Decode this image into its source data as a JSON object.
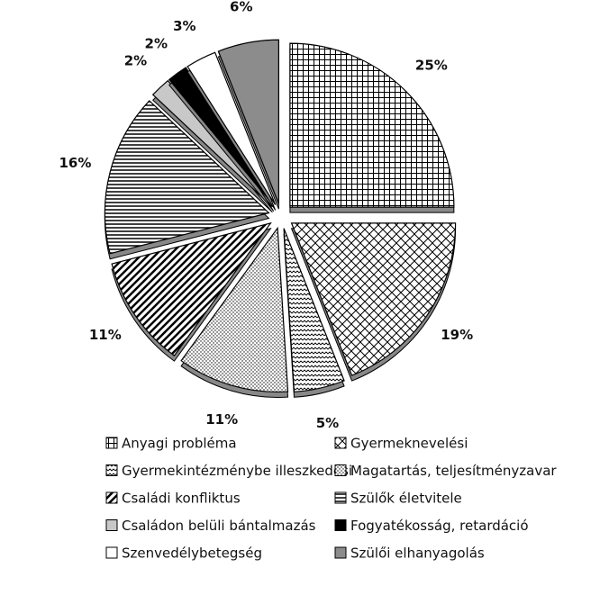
{
  "chart_data": {
    "type": "pie",
    "categories": [
      "Anyagi probléma",
      "Gyermeknevelési",
      "Gyermekintézménybe illeszkedési",
      "Magatartás, teljesítményzavar",
      "Családi konfliktus",
      "Szülők életvitele",
      "Családon belüli bántalmazás",
      "Fogyatékosság, retardáció",
      "Szenvedélybetegség",
      "Szülői elhanyagolás"
    ],
    "values": [
      25,
      19,
      5,
      11,
      11,
      16,
      2,
      2,
      3,
      6
    ],
    "value_labels": [
      "25%",
      "19%",
      "5%",
      "11%",
      "11%",
      "16%",
      "2%",
      "2%",
      "3%",
      "6%"
    ],
    "colors": [
      "#000000",
      "#000000",
      "#000000",
      "#000000",
      "#000000",
      "#000000",
      "#c8c8c8",
      "#000000",
      "#ffffff",
      "#8c8c8c"
    ]
  }
}
